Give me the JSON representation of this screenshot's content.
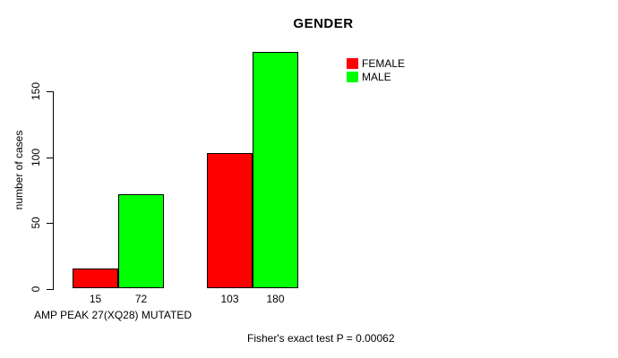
{
  "chart_data": {
    "type": "bar",
    "title": "GENDER",
    "ylabel": "number of cases",
    "xlabel": "AMP PEAK 27(XQ28) MUTATED",
    "annotation": "Fisher's exact test P = 0.00062",
    "series": [
      {
        "name": "FEMALE",
        "color": "#FF0000",
        "values": [
          15,
          103
        ]
      },
      {
        "name": "MALE",
        "color": "#00FF00",
        "values": [
          72,
          180
        ]
      }
    ],
    "bar_value_labels": [
      "15",
      "72",
      "103",
      "180"
    ],
    "y_ticks": [
      0,
      50,
      100,
      150
    ],
    "ylim": [
      0,
      185
    ],
    "grid": false,
    "legend_position": "top-right",
    "bar_border_color": "#000000",
    "axis_color": "#000000",
    "background_color": "#FFFFFF"
  }
}
